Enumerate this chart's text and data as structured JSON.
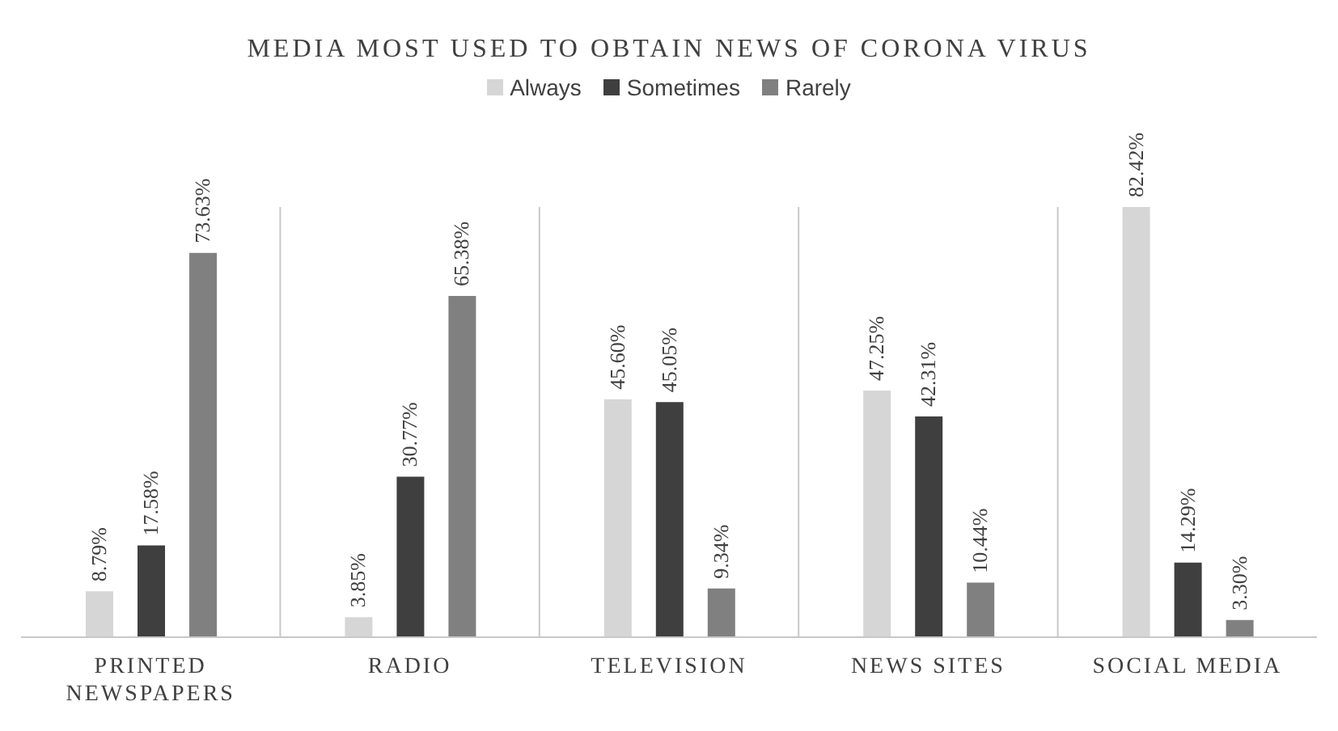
{
  "chart_data": {
    "type": "bar",
    "title": "MEDIA MOST USED TO OBTAIN NEWS OF CORONA VIRUS",
    "categories": [
      "PRINTED NEWSPAPERS",
      "RADIO",
      "TELEVISION",
      "NEWS SITES",
      "SOCIAL MEDIA"
    ],
    "series": [
      {
        "name": "Always",
        "color": "#d6d6d6",
        "values": [
          8.79,
          3.85,
          45.6,
          47.25,
          82.42
        ],
        "value_labels": [
          "8.79%",
          "3.85%",
          "45.60%",
          "47.25%",
          "82.42%"
        ]
      },
      {
        "name": "Sometimes",
        "color": "#3f3f3f",
        "values": [
          17.58,
          30.77,
          45.05,
          42.31,
          14.29
        ],
        "value_labels": [
          "17.58%",
          "30.77%",
          "45.05%",
          "42.31%",
          "14.29%"
        ]
      },
      {
        "name": "Rarely",
        "color": "#808080",
        "values": [
          73.63,
          65.38,
          9.34,
          10.44,
          3.3
        ],
        "value_labels": [
          "73.63%",
          "65.38%",
          "9.34%",
          "10.44%",
          "3.30%"
        ]
      }
    ],
    "legend": "top",
    "grid": "x"
  }
}
